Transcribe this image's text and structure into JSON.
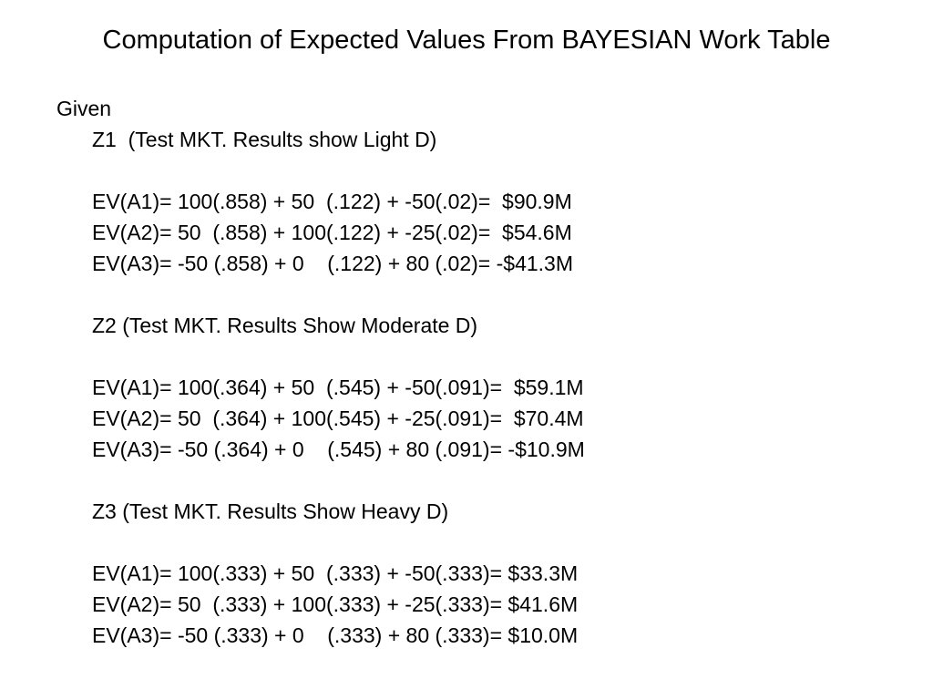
{
  "title": "Computation of Expected Values From BAYESIAN Work Table",
  "given": "Given",
  "sections": [
    {
      "heading": "Z1  (Test MKT. Results show Light D)",
      "lines": [
        "EV(A1)= 100(.858) + 50  (.122) + -50(.02)=  $90.9M",
        "EV(A2)= 50  (.858) + 100(.122) + -25(.02)=  $54.6M",
        "EV(A3)= -50 (.858) + 0    (.122) + 80 (.02)= -$41.3M"
      ]
    },
    {
      "heading": "Z2 (Test MKT. Results Show Moderate D)",
      "lines": [
        "EV(A1)= 100(.364) + 50  (.545) + -50(.091)=  $59.1M",
        "EV(A2)= 50  (.364) + 100(.545) + -25(.091)=  $70.4M",
        "EV(A3)= -50 (.364) + 0    (.545) + 80 (.091)= -$10.9M"
      ]
    },
    {
      "heading": "Z3 (Test MKT. Results Show Heavy D)",
      "lines": [
        "EV(A1)= 100(.333) + 50  (.333) + -50(.333)= $33.3M",
        "EV(A2)= 50  (.333) + 100(.333) + -25(.333)= $41.6M",
        "EV(A3)= -50 (.333) + 0    (.333) + 80 (.333)= $10.0M"
      ]
    }
  ]
}
